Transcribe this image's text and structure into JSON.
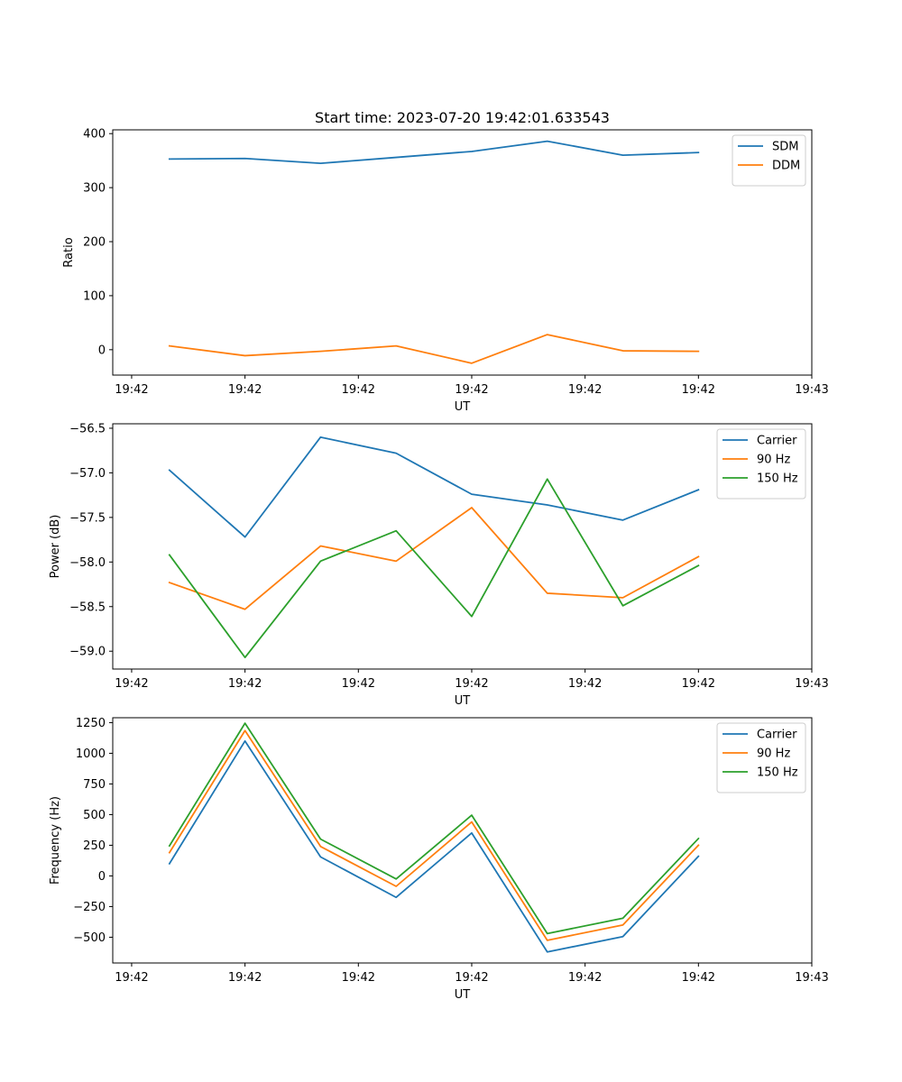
{
  "title": "Start time: 2023-07-20 19:42:01.633543",
  "colors": {
    "blue": "#1f77b4",
    "orange": "#ff7f0e",
    "green": "#2ca02c"
  },
  "chart_data": [
    {
      "type": "line",
      "title": "Start time: 2023-07-20 19:42:01.633543",
      "xlabel": "UT",
      "ylabel": "Ratio",
      "xlim": [
        -0.75,
        8.5
      ],
      "ylim": [
        -47,
        407
      ],
      "xticks": [
        -0.5,
        1,
        2.5,
        4,
        5.5,
        7,
        8.5
      ],
      "xtick_labels": [
        "19:42",
        "19:42",
        "19:42",
        "19:42",
        "19:42",
        "19:42",
        "19:43"
      ],
      "yticks": [
        0,
        100,
        200,
        300,
        400
      ],
      "ytick_labels": [
        "0",
        "100",
        "200",
        "300",
        "400"
      ],
      "legend": "top-right",
      "x": [
        0,
        1,
        2,
        3,
        4,
        5,
        6,
        7
      ],
      "series": [
        {
          "name": "SDM",
          "color": "#1f77b4",
          "values": [
            353,
            354,
            345,
            356,
            367,
            386,
            360,
            365
          ]
        },
        {
          "name": "DDM",
          "color": "#ff7f0e",
          "values": [
            7,
            -11,
            -3,
            7,
            -25,
            28,
            -2,
            -3
          ]
        }
      ]
    },
    {
      "type": "line",
      "xlabel": "UT",
      "ylabel": "Power (dB)",
      "xlim": [
        -0.75,
        8.5
      ],
      "ylim": [
        -59.2,
        -56.45
      ],
      "xticks": [
        -0.5,
        1,
        2.5,
        4,
        5.5,
        7,
        8.5
      ],
      "xtick_labels": [
        "19:42",
        "19:42",
        "19:42",
        "19:42",
        "19:42",
        "19:42",
        "19:43"
      ],
      "yticks": [
        -59.0,
        -58.5,
        -58.0,
        -57.5,
        -57.0,
        -56.5
      ],
      "ytick_labels": [
        "−59.0",
        "−58.5",
        "−58.0",
        "−57.5",
        "−57.0",
        "−56.5"
      ],
      "legend": "top-right",
      "x": [
        0,
        1,
        2,
        3,
        4,
        5,
        6,
        7
      ],
      "series": [
        {
          "name": "Carrier",
          "color": "#1f77b4",
          "values": [
            -56.97,
            -57.72,
            -56.6,
            -56.78,
            -57.24,
            -57.36,
            -57.53,
            -57.19
          ]
        },
        {
          "name": "90 Hz",
          "color": "#ff7f0e",
          "values": [
            -58.23,
            -58.53,
            -57.82,
            -57.99,
            -57.39,
            -58.35,
            -58.4,
            -57.94
          ]
        },
        {
          "name": "150 Hz",
          "color": "#2ca02c",
          "values": [
            -57.92,
            -59.07,
            -57.99,
            -57.65,
            -58.61,
            -57.07,
            -58.49,
            -58.04
          ]
        }
      ]
    },
    {
      "type": "line",
      "xlabel": "UT",
      "ylabel": "Frequency (Hz)",
      "xlim": [
        -0.75,
        8.5
      ],
      "ylim": [
        -710,
        1290
      ],
      "xticks": [
        -0.5,
        1,
        2.5,
        4,
        5.5,
        7,
        8.5
      ],
      "xtick_labels": [
        "19:42",
        "19:42",
        "19:42",
        "19:42",
        "19:42",
        "19:42",
        "19:43"
      ],
      "yticks": [
        -500,
        -250,
        0,
        250,
        500,
        750,
        1000,
        1250
      ],
      "ytick_labels": [
        "−500",
        "−250",
        "0",
        "250",
        "500",
        "750",
        "1000",
        "1250"
      ],
      "legend": "top-right",
      "x": [
        0,
        1,
        2,
        3,
        4,
        5,
        6,
        7
      ],
      "series": [
        {
          "name": "Carrier",
          "color": "#1f77b4",
          "values": [
            100,
            1100,
            155,
            -175,
            350,
            -620,
            -495,
            160
          ]
        },
        {
          "name": "90 Hz",
          "color": "#ff7f0e",
          "values": [
            190,
            1185,
            240,
            -85,
            440,
            -525,
            -400,
            250
          ]
        },
        {
          "name": "150 Hz",
          "color": "#2ca02c",
          "values": [
            245,
            1245,
            300,
            -25,
            495,
            -470,
            -345,
            305
          ]
        }
      ]
    }
  ]
}
